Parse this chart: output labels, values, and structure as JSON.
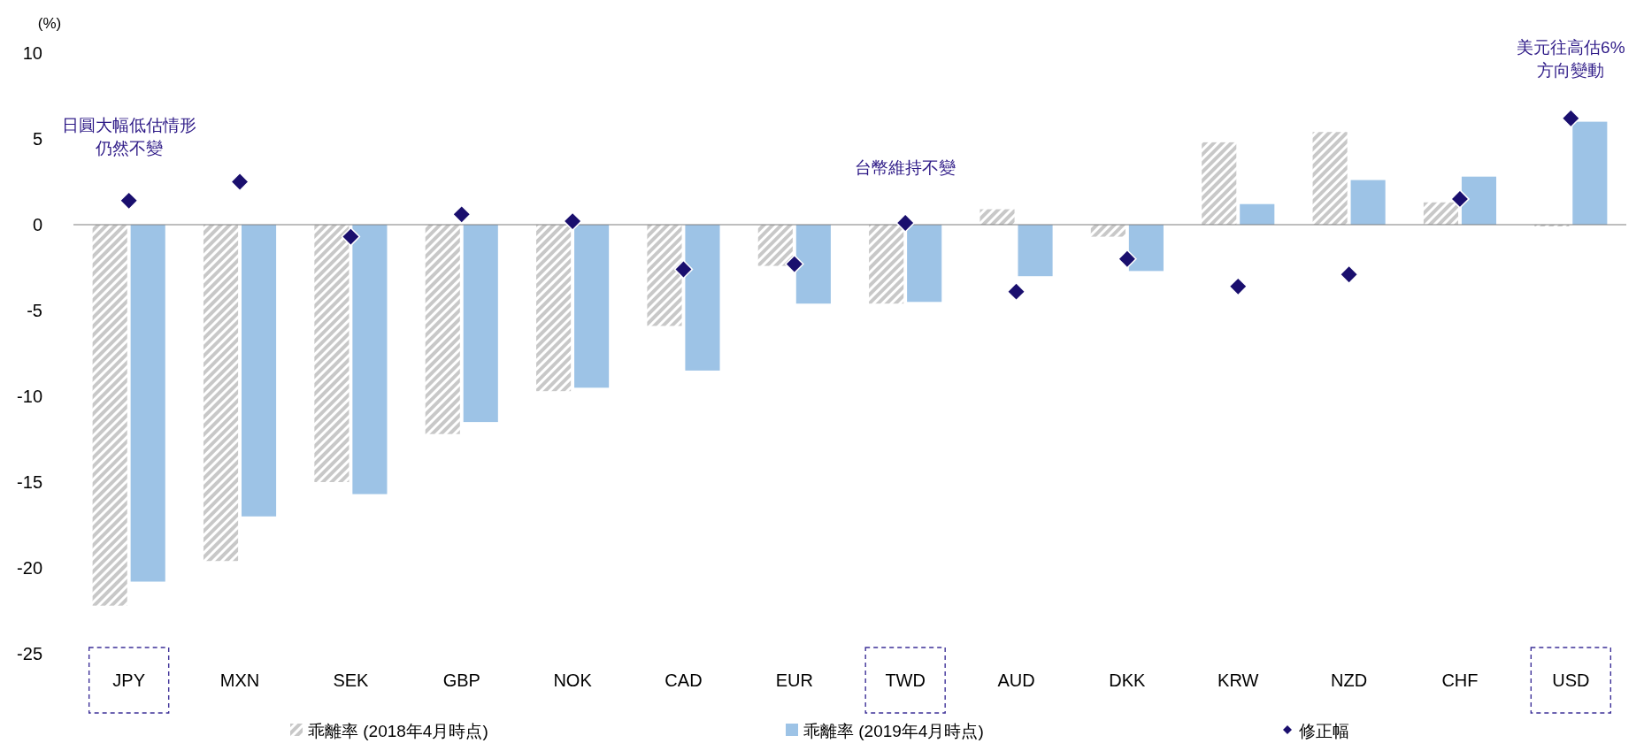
{
  "chart_data": {
    "type": "bar",
    "ylabel": "(%)",
    "categories": [
      "JPY",
      "MXN",
      "SEK",
      "GBP",
      "NOK",
      "CAD",
      "EUR",
      "TWD",
      "AUD",
      "DKK",
      "KRW",
      "NZD",
      "CHF",
      "USD"
    ],
    "series": [
      {
        "name": "乖離率 (2018年4月時点)",
        "color": "#c8c8c8",
        "values": [
          -22.2,
          -19.6,
          -15.0,
          -12.2,
          -9.7,
          -5.9,
          -2.4,
          -4.6,
          0.9,
          -0.7,
          4.8,
          5.4,
          1.3,
          -0.1
        ]
      },
      {
        "name": "乖離率 (2019年4月時点)",
        "color": "#9dc3e6",
        "values": [
          -20.8,
          -17.0,
          -15.7,
          -11.5,
          -9.5,
          -8.5,
          -4.6,
          -4.5,
          -3.0,
          -2.7,
          1.2,
          2.6,
          2.8,
          6.0
        ]
      },
      {
        "name": "修正幅",
        "type": "scatter",
        "marker": "diamond",
        "color": "#1a0f6e",
        "x": [
          "JPY",
          "MXN",
          "SEK",
          "GBP",
          "NOK",
          "CAD",
          "EUR",
          "TWD",
          "AUD",
          "DKK",
          "KRW",
          "NZD",
          "CHF",
          "USD"
        ],
        "values": [
          1.4,
          2.5,
          -0.7,
          0.6,
          0.2,
          -2.6,
          -2.3,
          0.1,
          -3.9,
          -2.0,
          -3.6,
          -2.9,
          1.5,
          6.2
        ]
      }
    ],
    "ylim": [
      -25,
      10
    ],
    "yticks": [
      -25,
      -20,
      -15,
      -10,
      -5,
      0,
      5,
      10
    ],
    "grid": false,
    "ref_lines": [
      {
        "axis": "y",
        "value": 0,
        "color": "#7f7f7f"
      }
    ],
    "legend": "bottom",
    "annotations": [
      "日圓大幅低估情形仍然不變",
      "台幣維持不變",
      "美元往高估6%方向變動"
    ]
  }
}
